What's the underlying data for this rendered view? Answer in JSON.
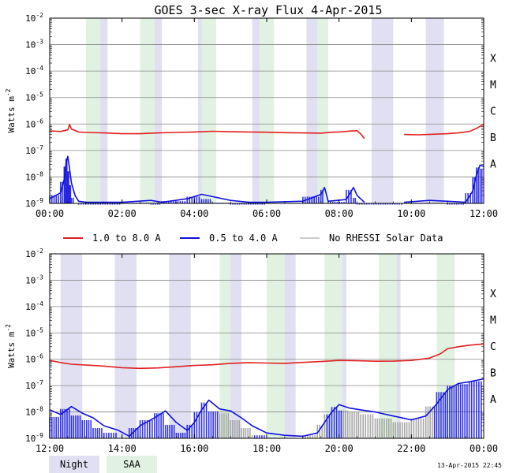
{
  "chart_data": {
    "type": "line",
    "title": "GOES 3-sec X-ray Flux    4-Apr-2015",
    "ylabel": "Watts m-2",
    "y_scale": "log",
    "ylim": [
      1e-09,
      0.01
    ],
    "y_tick_labels": [
      {
        "base": "10",
        "exp": "-9"
      },
      {
        "base": "10",
        "exp": "-8"
      },
      {
        "base": "10",
        "exp": "-7"
      },
      {
        "base": "10",
        "exp": "-6"
      },
      {
        "base": "10",
        "exp": "-5"
      },
      {
        "base": "10",
        "exp": "-4"
      },
      {
        "base": "10",
        "exp": "-3"
      },
      {
        "base": "10",
        "exp": "-2"
      }
    ],
    "flare_classes": [
      {
        "label": "A",
        "level": 1e-08
      },
      {
        "label": "B",
        "level": 1e-07
      },
      {
        "label": "C",
        "level": 1e-06
      },
      {
        "label": "M",
        "level": 1e-05
      },
      {
        "label": "X",
        "level": 0.0001
      }
    ],
    "grid": true,
    "legend": [
      {
        "label": "1.0 to 8.0 A",
        "color": "#e02020"
      },
      {
        "label": "0.5 to 4.0 A",
        "color": "#1010e0"
      },
      {
        "label": "No RHESSI Solar Data",
        "color": "#999999"
      }
    ],
    "shade_legend": [
      {
        "label": "Night",
        "color": "#e0e0f2"
      },
      {
        "label": "SAA",
        "color": "#e2f2e2"
      }
    ],
    "timestamp": "13-Apr-2015 22:45",
    "panels": [
      {
        "x_range_hours": [
          0,
          12
        ],
        "x_tick_labels": [
          "00:00",
          "02:00",
          "04:00",
          "06:00",
          "08:00",
          "10:00",
          "12:00"
        ],
        "night": [
          [
            1.1,
            1.6
          ],
          [
            2.6,
            3.1
          ],
          [
            4.1,
            4.6
          ],
          [
            5.6,
            6.0
          ],
          [
            7.1,
            7.5
          ],
          [
            8.9,
            9.5
          ],
          [
            10.4,
            10.9
          ]
        ],
        "saa": [
          [
            1.0,
            1.4
          ],
          [
            2.5,
            2.9
          ],
          [
            4.2,
            4.6
          ],
          [
            5.8,
            6.2
          ],
          [
            7.4,
            7.7
          ]
        ],
        "long": {
          "gaps": [
            [
              8.7,
              9.8
            ]
          ],
          "points": [
            [
              0,
              5.5e-07
            ],
            [
              0.3,
              5.2e-07
            ],
            [
              0.5,
              6e-07
            ],
            [
              0.55,
              9.5e-07
            ],
            [
              0.6,
              6.5e-07
            ],
            [
              0.8,
              5e-07
            ],
            [
              1.0,
              4.8e-07
            ],
            [
              1.5,
              4.6e-07
            ],
            [
              2.0,
              4.3e-07
            ],
            [
              2.5,
              4.3e-07
            ],
            [
              3.0,
              4.6e-07
            ],
            [
              3.5,
              4.8e-07
            ],
            [
              4.0,
              5e-07
            ],
            [
              4.5,
              5.3e-07
            ],
            [
              5.0,
              5.1e-07
            ],
            [
              5.5,
              5e-07
            ],
            [
              6.0,
              4.9e-07
            ],
            [
              6.5,
              4.7e-07
            ],
            [
              7.0,
              4.6e-07
            ],
            [
              7.5,
              4.5e-07
            ],
            [
              7.8,
              4.9e-07
            ],
            [
              8.0,
              5e-07
            ],
            [
              8.3,
              5.4e-07
            ],
            [
              8.5,
              5.6e-07
            ],
            [
              8.6,
              4.2e-07
            ],
            [
              8.7,
              2.8e-07
            ],
            [
              9.8,
              4e-07
            ],
            [
              10.2,
              3.9e-07
            ],
            [
              10.6,
              4.1e-07
            ],
            [
              11.0,
              4.3e-07
            ],
            [
              11.3,
              4.6e-07
            ],
            [
              11.6,
              5.2e-07
            ],
            [
              11.8,
              6.8e-07
            ],
            [
              12.0,
              9.8e-07
            ]
          ]
        },
        "short": {
          "gaps": [
            [
              8.7,
              9.8
            ]
          ],
          "points": [
            [
              0,
              1.5e-09
            ],
            [
              0.3,
              2.5e-09
            ],
            [
              0.4,
              8e-09
            ],
            [
              0.45,
              3e-08
            ],
            [
              0.5,
              6e-08
            ],
            [
              0.55,
              2e-08
            ],
            [
              0.6,
              6e-09
            ],
            [
              0.7,
              2e-09
            ],
            [
              0.8,
              1.2e-09
            ],
            [
              1.0,
              1.1e-09
            ],
            [
              2.0,
              1.1e-09
            ],
            [
              2.8,
              1.3e-09
            ],
            [
              3.1,
              1.1e-09
            ],
            [
              3.8,
              1.5e-09
            ],
            [
              4.2,
              2.2e-09
            ],
            [
              4.5,
              1.8e-09
            ],
            [
              5.0,
              1.3e-09
            ],
            [
              5.5,
              1.1e-09
            ],
            [
              6.0,
              1.1e-09
            ],
            [
              7.0,
              1.2e-09
            ],
            [
              7.5,
              2.2e-09
            ],
            [
              7.6,
              4e-09
            ],
            [
              7.7,
              1.2e-09
            ],
            [
              8.2,
              1.4e-09
            ],
            [
              8.4,
              4e-09
            ],
            [
              8.5,
              2e-09
            ],
            [
              8.7,
              1.1e-09
            ],
            [
              9.8,
              1.1e-09
            ],
            [
              10.5,
              1.3e-09
            ],
            [
              11.0,
              1.2e-09
            ],
            [
              11.5,
              1.1e-09
            ],
            [
              11.7,
              3e-09
            ],
            [
              11.8,
              1.2e-08
            ],
            [
              11.9,
              2.8e-08
            ],
            [
              12.0,
              2.5e-08
            ]
          ]
        }
      },
      {
        "x_range_hours": [
          12,
          24
        ],
        "x_tick_labels": [
          "12:00",
          "14:00",
          "16:00",
          "18:00",
          "20:00",
          "22:00",
          "00:00"
        ],
        "night": [
          [
            12.3,
            12.9
          ],
          [
            13.8,
            14.4
          ],
          [
            15.3,
            15.9
          ],
          [
            16.8,
            17.3
          ],
          [
            18.3,
            18.8
          ],
          [
            19.7,
            20.2
          ],
          [
            21.2,
            21.7
          ],
          [
            22.7,
            23.2
          ]
        ],
        "saa": [
          [
            16.7,
            17.0
          ],
          [
            18.0,
            18.5
          ],
          [
            19.6,
            20.1
          ],
          [
            21.1,
            21.6
          ],
          [
            22.7,
            23.2
          ]
        ],
        "long": {
          "gaps": [],
          "points": [
            [
              12.0,
              9e-07
            ],
            [
              12.3,
              7.5e-07
            ],
            [
              12.6,
              6.5e-07
            ],
            [
              13.0,
              6e-07
            ],
            [
              13.5,
              5.5e-07
            ],
            [
              14.0,
              4.8e-07
            ],
            [
              14.5,
              4.5e-07
            ],
            [
              15.0,
              4.7e-07
            ],
            [
              15.5,
              5.2e-07
            ],
            [
              16.0,
              5.8e-07
            ],
            [
              16.5,
              6.2e-07
            ],
            [
              17.0,
              7e-07
            ],
            [
              17.5,
              7.4e-07
            ],
            [
              18.0,
              7.2e-07
            ],
            [
              18.5,
              7e-07
            ],
            [
              19.0,
              7.6e-07
            ],
            [
              19.5,
              8.2e-07
            ],
            [
              20.0,
              9e-07
            ],
            [
              20.5,
              8.8e-07
            ],
            [
              21.0,
              8.4e-07
            ],
            [
              21.5,
              8.5e-07
            ],
            [
              22.0,
              9e-07
            ],
            [
              22.5,
              1.1e-06
            ],
            [
              22.8,
              1.6e-06
            ],
            [
              23.0,
              2.5e-06
            ],
            [
              23.3,
              3e-06
            ],
            [
              23.6,
              3.4e-06
            ],
            [
              24.0,
              3.8e-06
            ]
          ]
        },
        "short": {
          "gaps": [],
          "points": [
            [
              12.0,
              1.2e-08
            ],
            [
              12.3,
              8e-09
            ],
            [
              12.6,
              1.6e-08
            ],
            [
              12.9,
              9e-09
            ],
            [
              13.2,
              6e-09
            ],
            [
              13.5,
              3e-09
            ],
            [
              13.9,
              2e-09
            ],
            [
              14.2,
              1.2e-09
            ],
            [
              14.5,
              3e-09
            ],
            [
              14.9,
              6e-09
            ],
            [
              15.2,
              1.1e-08
            ],
            [
              15.5,
              4e-09
            ],
            [
              15.8,
              2e-09
            ],
            [
              16.0,
              4e-09
            ],
            [
              16.2,
              1.2e-08
            ],
            [
              16.4,
              2.8e-08
            ],
            [
              16.7,
              1.3e-08
            ],
            [
              17.0,
              1.1e-08
            ],
            [
              17.3,
              6e-09
            ],
            [
              17.6,
              3e-09
            ],
            [
              18.0,
              1.6e-09
            ],
            [
              18.5,
              1.3e-09
            ],
            [
              19.0,
              1.2e-09
            ],
            [
              19.4,
              1.6e-09
            ],
            [
              19.6,
              4e-09
            ],
            [
              19.8,
              1e-08
            ],
            [
              20.0,
              1.9e-08
            ],
            [
              20.3,
              1.4e-08
            ],
            [
              20.6,
              1.2e-08
            ],
            [
              21.0,
              1e-08
            ],
            [
              21.5,
              7e-09
            ],
            [
              22.0,
              5e-09
            ],
            [
              22.4,
              7e-09
            ],
            [
              22.7,
              2e-08
            ],
            [
              23.0,
              7e-08
            ],
            [
              23.3,
              1.2e-07
            ],
            [
              23.6,
              1.4e-07
            ],
            [
              24.0,
              1.8e-07
            ]
          ]
        },
        "gray_segments": [
          [
            16.7,
            17.6
          ],
          [
            18.3,
            19.6
          ],
          [
            20.1,
            22.6
          ]
        ]
      }
    ]
  }
}
